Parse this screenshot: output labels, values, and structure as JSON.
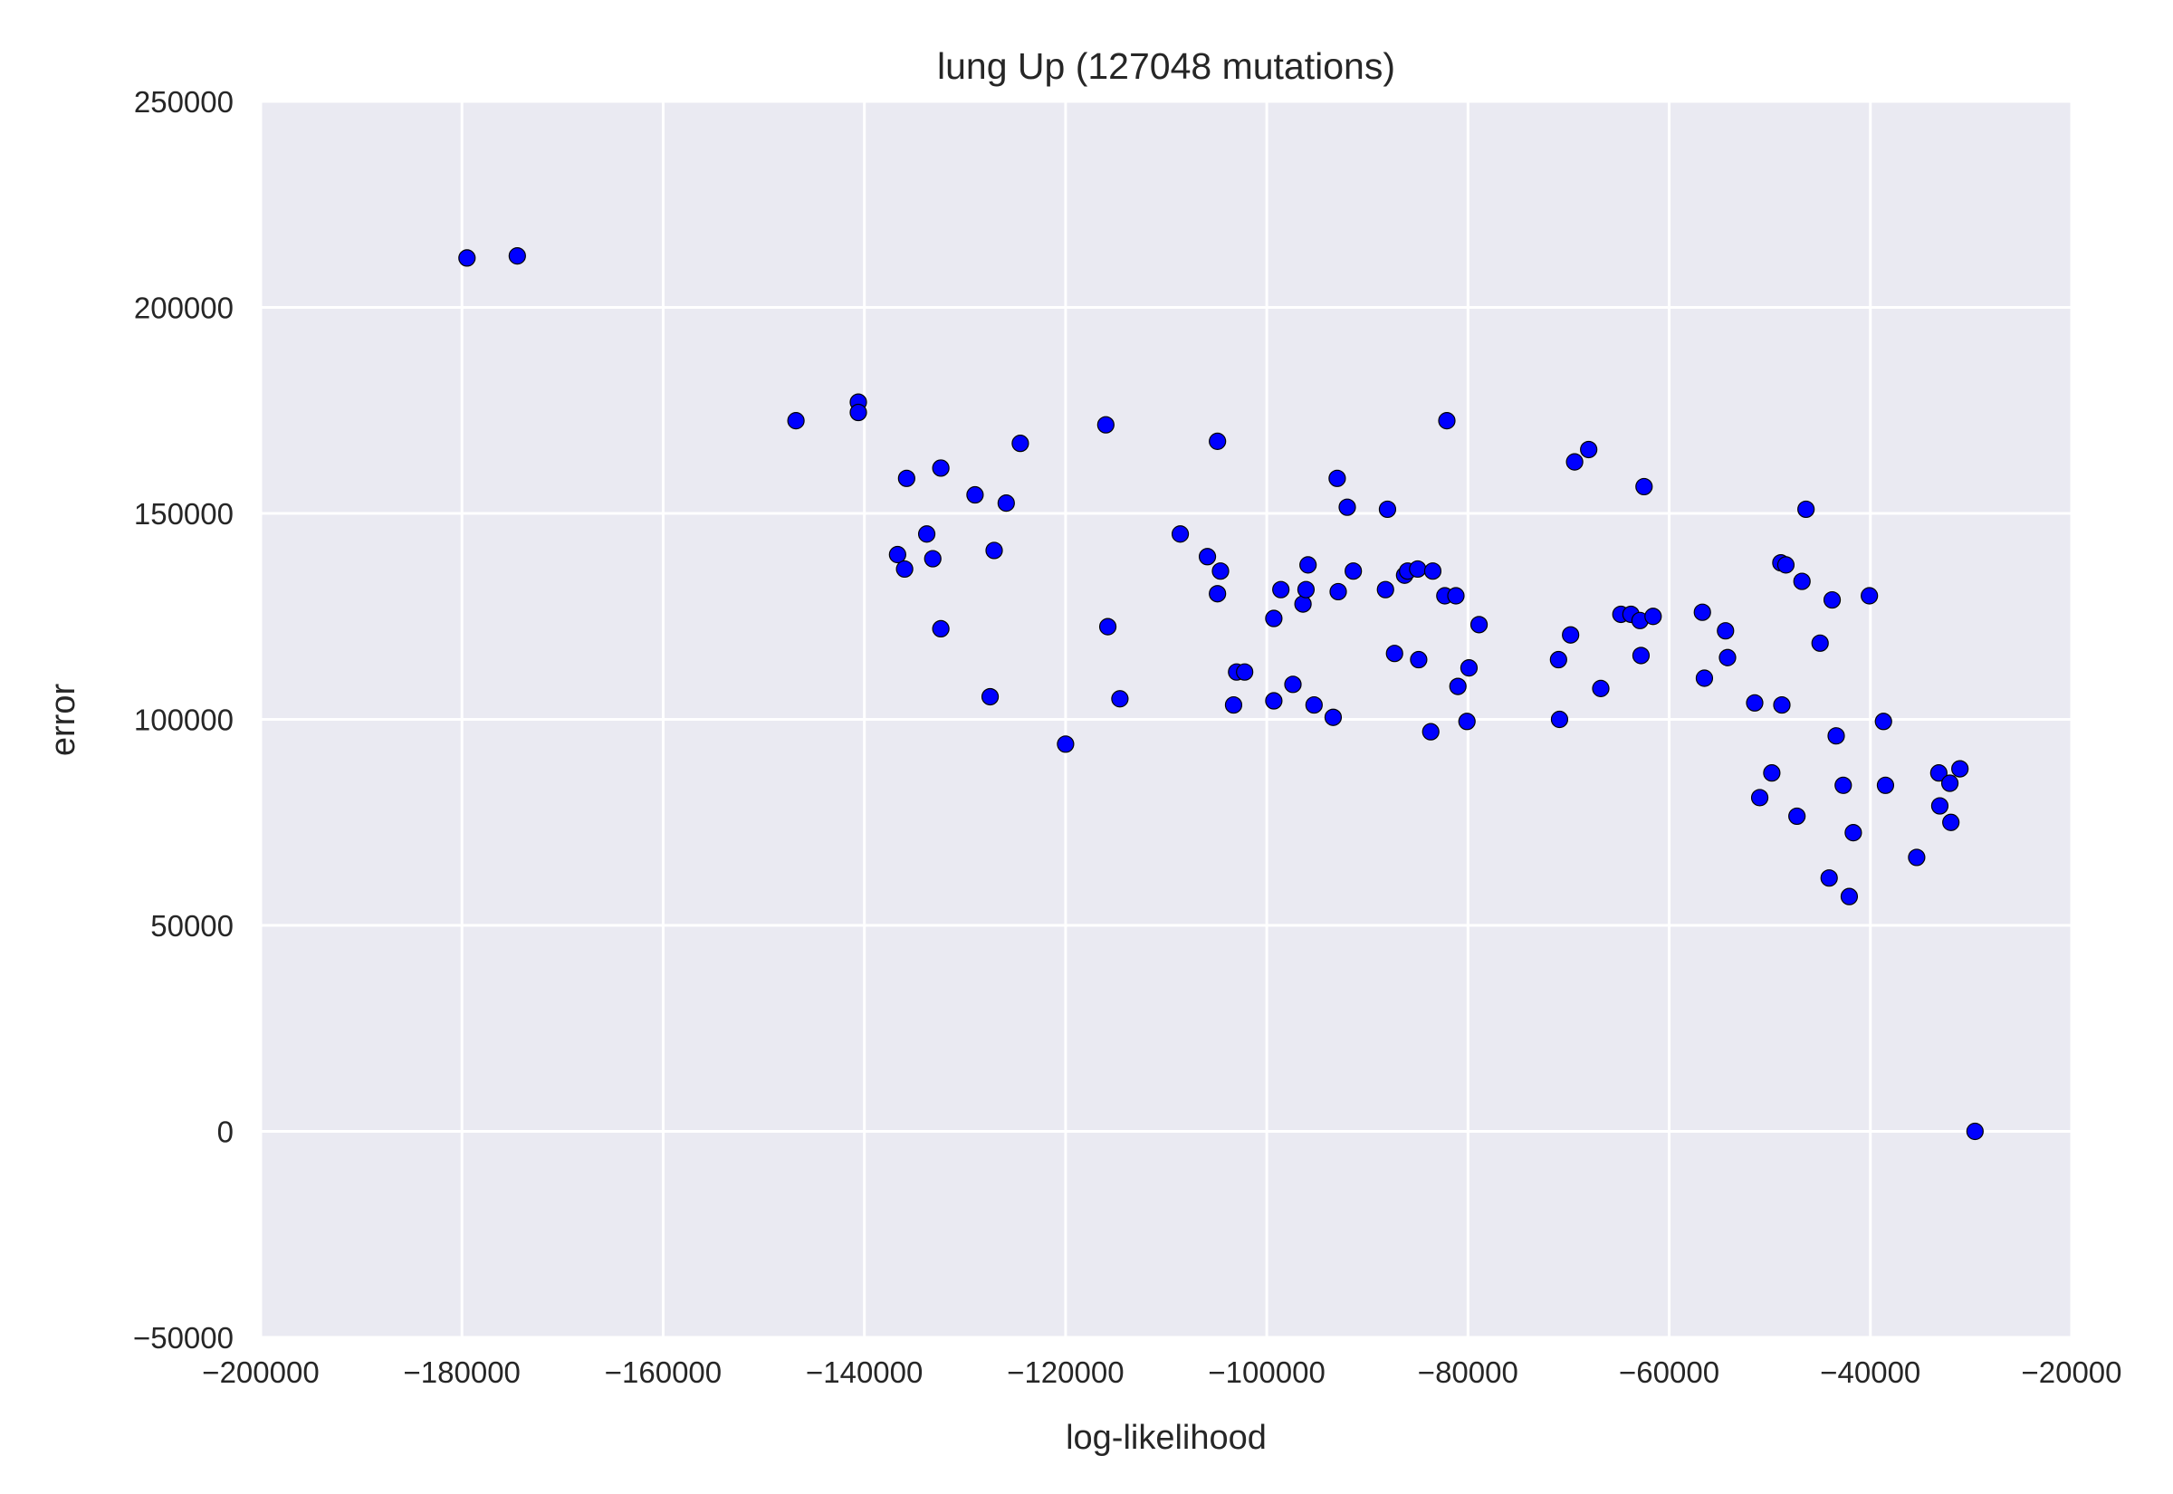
{
  "chart_data": {
    "type": "scatter",
    "title": "lung Up (127048 mutations)",
    "xlabel": "log-likelihood",
    "ylabel": "error",
    "xlim": [
      -200000,
      -20000
    ],
    "ylim": [
      -50000,
      250000
    ],
    "x_ticks": [
      "−200000",
      "−180000",
      "−160000",
      "−140000",
      "−120000",
      "−100000",
      "−80000",
      "−60000",
      "−40000",
      "−20000"
    ],
    "y_ticks": [
      "−50000",
      "0",
      "50000",
      "100000",
      "150000",
      "200000",
      "250000"
    ],
    "grid": true,
    "background": "#EAEAF2",
    "grid_color": "#FFFFFF",
    "marker_color": "#0000FF",
    "marker_edge": "#000000",
    "points": [
      [
        -179500,
        212000
      ],
      [
        -174500,
        212500
      ],
      [
        -146800,
        172500
      ],
      [
        -140600,
        177000
      ],
      [
        -140600,
        174500
      ],
      [
        -136700,
        140000
      ],
      [
        -136000,
        136500
      ],
      [
        -135800,
        158500
      ],
      [
        -133800,
        145000
      ],
      [
        -133200,
        139000
      ],
      [
        -132400,
        161000
      ],
      [
        -132400,
        122000
      ],
      [
        -129000,
        154500
      ],
      [
        -127500,
        105500
      ],
      [
        -127100,
        141000
      ],
      [
        -125900,
        152500
      ],
      [
        -124500,
        167000
      ],
      [
        -120000,
        94000
      ],
      [
        -116000,
        171500
      ],
      [
        -115800,
        122500
      ],
      [
        -114600,
        105000
      ],
      [
        -108600,
        145000
      ],
      [
        -105900,
        139500
      ],
      [
        -104900,
        167500
      ],
      [
        -104900,
        130500
      ],
      [
        -104600,
        136000
      ],
      [
        -103300,
        103500
      ],
      [
        -103000,
        111500
      ],
      [
        -102200,
        111500
      ],
      [
        -99300,
        124500
      ],
      [
        -99300,
        104500
      ],
      [
        -98600,
        131500
      ],
      [
        -97400,
        108500
      ],
      [
        -96400,
        128000
      ],
      [
        -96100,
        131500
      ],
      [
        -95900,
        137500
      ],
      [
        -95300,
        103500
      ],
      [
        -93400,
        100500
      ],
      [
        -93000,
        158500
      ],
      [
        -92900,
        131000
      ],
      [
        -92000,
        151500
      ],
      [
        -91400,
        136000
      ],
      [
        -88200,
        131500
      ],
      [
        -88000,
        151000
      ],
      [
        -87300,
        116000
      ],
      [
        -86300,
        135000
      ],
      [
        -86000,
        136000
      ],
      [
        -85000,
        136500
      ],
      [
        -84900,
        114500
      ],
      [
        -83700,
        97000
      ],
      [
        -83500,
        136000
      ],
      [
        -82300,
        130000
      ],
      [
        -82100,
        172500
      ],
      [
        -81200,
        130000
      ],
      [
        -81000,
        108000
      ],
      [
        -80100,
        99500
      ],
      [
        -79900,
        112500
      ],
      [
        -78900,
        123000
      ],
      [
        -71000,
        114500
      ],
      [
        -70900,
        100000
      ],
      [
        -69800,
        120500
      ],
      [
        -69400,
        162500
      ],
      [
        -68000,
        165500
      ],
      [
        -66800,
        107500
      ],
      [
        -64800,
        125500
      ],
      [
        -63800,
        125500
      ],
      [
        -62900,
        124000
      ],
      [
        -62800,
        115500
      ],
      [
        -62500,
        156500
      ],
      [
        -61600,
        125000
      ],
      [
        -56700,
        126000
      ],
      [
        -56500,
        110000
      ],
      [
        -54400,
        121500
      ],
      [
        -54200,
        115000
      ],
      [
        -51500,
        104000
      ],
      [
        -51000,
        81000
      ],
      [
        -49800,
        87000
      ],
      [
        -48900,
        138000
      ],
      [
        -48800,
        103500
      ],
      [
        -48400,
        137500
      ],
      [
        -47300,
        76500
      ],
      [
        -46800,
        133500
      ],
      [
        -46400,
        151000
      ],
      [
        -45000,
        118500
      ],
      [
        -44100,
        61500
      ],
      [
        -43800,
        129000
      ],
      [
        -43400,
        96000
      ],
      [
        -42700,
        84000
      ],
      [
        -42100,
        57000
      ],
      [
        -41700,
        72500
      ],
      [
        -40100,
        130000
      ],
      [
        -38700,
        99500
      ],
      [
        -38500,
        84000
      ],
      [
        -35400,
        66500
      ],
      [
        -33200,
        87000
      ],
      [
        -33100,
        79000
      ],
      [
        -32100,
        84500
      ],
      [
        -32000,
        75000
      ],
      [
        -31100,
        88000
      ],
      [
        -29600,
        0
      ]
    ]
  }
}
